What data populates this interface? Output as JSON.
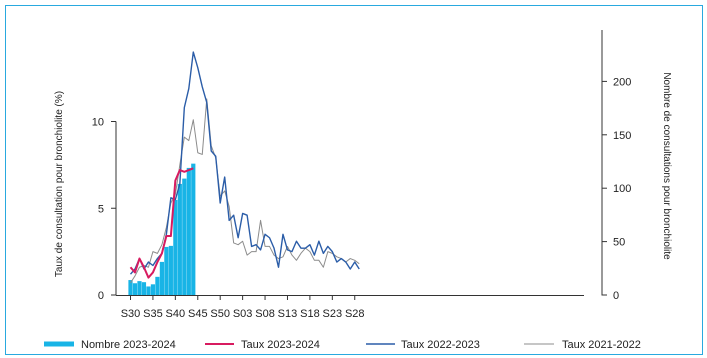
{
  "chart_data": {
    "type": "bar+line",
    "title": "",
    "ylabel_left": "Taux de consultation pour bronchiolite (%)",
    "ylabel_right": "Nombre de consultations pour bronchiolite",
    "ylim_left": [
      0,
      14
    ],
    "ylim_right": [
      0,
      240
    ],
    "yticks_left": [
      "0",
      "5",
      "10"
    ],
    "yticks_right": [
      "0",
      "50",
      "100",
      "150",
      "200"
    ],
    "x_tick_labels": [
      "S30",
      "S35",
      "S40",
      "S45",
      "S50",
      "S03",
      "S08",
      "S13",
      "S18",
      "S23",
      "S28"
    ],
    "weeks": [
      "S30",
      "S31",
      "S32",
      "S33",
      "S34",
      "S35",
      "S36",
      "S37",
      "S38",
      "S39",
      "S40",
      "S41",
      "S42",
      "S43",
      "S44",
      "S45",
      "S46",
      "S47",
      "S48",
      "S49",
      "S50",
      "S51",
      "S52",
      "S01",
      "S02",
      "S03",
      "S04",
      "S05",
      "S06",
      "S07",
      "S08",
      "S09",
      "S10",
      "S11",
      "S12",
      "S13",
      "S14",
      "S15",
      "S16",
      "S17",
      "S18",
      "S19",
      "S20",
      "S21",
      "S22",
      "S23",
      "S24",
      "S25",
      "S26",
      "S27",
      "S28",
      "S29"
    ],
    "grid": false,
    "legend_position": "bottom",
    "colors": {
      "bars_2023_2024": "#18b4e6",
      "rate_2023_2024": "#d81b60",
      "rate_2022_2023": "#2b5da8",
      "rate_2021_2022": "#8c8c8c",
      "frame": "#29a9df"
    },
    "series": [
      {
        "name": "Nombre 2023-2024",
        "kind": "bar",
        "axis": "right",
        "values": [
          14,
          11,
          13,
          12,
          8,
          10,
          17,
          31,
          45,
          46,
          89,
          104,
          109,
          119,
          123
        ]
      },
      {
        "name": "Taux 2023-2024",
        "kind": "line",
        "axis": "left",
        "values": [
          1.6,
          1.3,
          2.1,
          1.6,
          1.0,
          1.3,
          1.9,
          2.4,
          3.4,
          3.4,
          6.6,
          7.2,
          7.1,
          7.2,
          7.3
        ]
      },
      {
        "name": "Taux 2022-2023",
        "kind": "line",
        "axis": "left",
        "values": [
          1.2,
          1.5,
          2.1,
          1.5,
          1.9,
          1.7,
          2.1,
          2.4,
          3.5,
          5.6,
          5.5,
          6.4,
          10.8,
          11.9,
          14.0,
          13.1,
          12.0,
          11.1,
          8.3,
          8.0,
          5.3,
          6.8,
          4.3,
          4.6,
          3.3,
          4.7,
          4.6,
          2.8,
          2.9,
          2.6,
          3.5,
          3.3,
          2.7,
          1.6,
          3.5,
          2.6,
          2.5,
          3.1,
          2.7,
          2.7,
          2.9,
          2.3,
          3.1,
          2.4,
          2.8,
          2.5,
          1.9,
          2.1,
          1.9,
          1.5,
          1.9,
          1.5
        ]
      },
      {
        "name": "Taux 2021-2022",
        "kind": "line",
        "axis": "left",
        "values": [
          0.7,
          1.1,
          1.6,
          1.7,
          1.6,
          2.5,
          2.4,
          2.9,
          3.9,
          5.3,
          5.8,
          7.5,
          9.1,
          8.9,
          10.1,
          8.2,
          8.1,
          11.3,
          8.6,
          7.9,
          5.7,
          6.0,
          5.1,
          3.0,
          2.9,
          3.1,
          2.3,
          2.5,
          2.5,
          4.3,
          2.8,
          2.8,
          2.3,
          2.1,
          2.2,
          2.8,
          2.3,
          2.0,
          2.4,
          2.7,
          2.5,
          2.0,
          2.0,
          1.6,
          2.5,
          2.4,
          2.2,
          2.1,
          1.9,
          2.1,
          2.0,
          1.8
        ]
      }
    ]
  }
}
